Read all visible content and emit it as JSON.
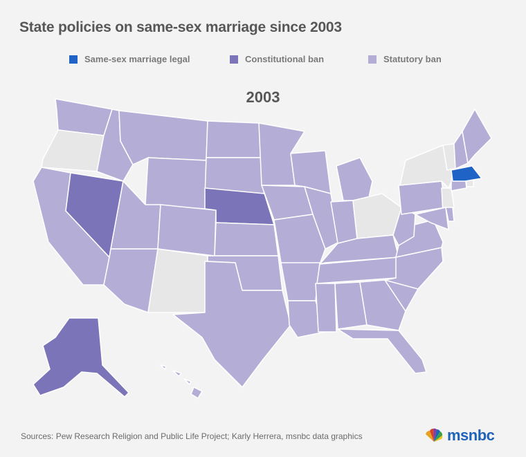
{
  "title": "State policies on same-sex marriage since 2003",
  "legend": [
    {
      "label": "Same-sex marriage legal",
      "color": "#1f63c6"
    },
    {
      "label": "Constitutional ban",
      "color": "#7c74b8"
    },
    {
      "label": "Statutory ban",
      "color": "#b4aed7"
    }
  ],
  "year": "2003",
  "colors": {
    "legal": "#1f63c6",
    "constitutional": "#7c74b8",
    "statutory": "#b4aed7",
    "none": "#e7e7e7",
    "border": "#ffffff",
    "brand": "#1f63b8"
  },
  "states": {
    "legal": [
      "MA"
    ],
    "constitutional": [
      "NV",
      "NE",
      "AK"
    ],
    "no_policy": [
      "OR",
      "NM",
      "OH",
      "NY",
      "NJ",
      "RI",
      "VT"
    ],
    "statutory": [
      "WA",
      "CA",
      "ID",
      "MT",
      "WY",
      "UT",
      "AZ",
      "CO",
      "ND",
      "SD",
      "KS",
      "OK",
      "TX",
      "MN",
      "IA",
      "MO",
      "AR",
      "LA",
      "WI",
      "IL",
      "MI",
      "IN",
      "KY",
      "TN",
      "MS",
      "AL",
      "GA",
      "FL",
      "SC",
      "NC",
      "VA",
      "WV",
      "PA",
      "MD",
      "DE",
      "CT",
      "NH",
      "ME",
      "HI"
    ]
  },
  "source": "Sources: Pew Research Religion and Public Life Project; Karly Herrera, msnbc data graphics",
  "logo": {
    "text": "msnbc",
    "icon": "peacock-icon"
  }
}
